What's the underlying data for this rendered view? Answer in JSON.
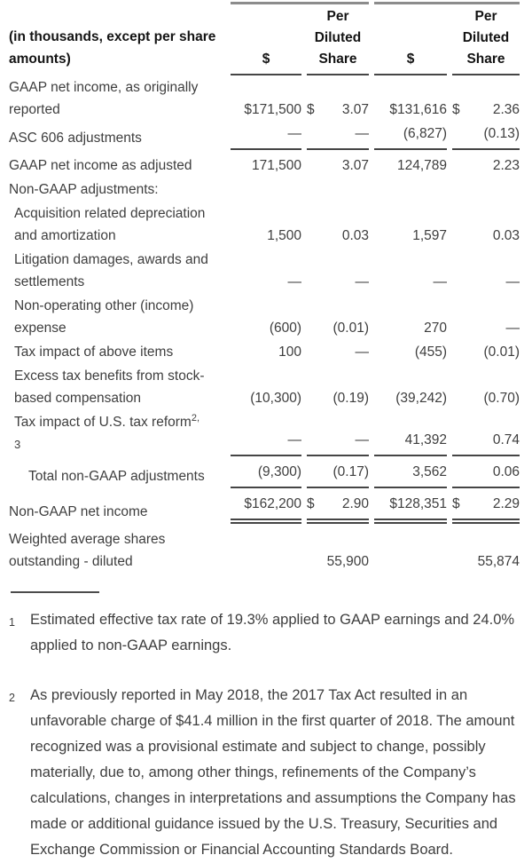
{
  "colors": {
    "text": "#3e3e3e",
    "heading": "#141414",
    "rule_thin": "#454545",
    "rule_thick": "#8c8c8c",
    "background": "#ffffff"
  },
  "table": {
    "corner_label": "(in thousands, except per share amounts)",
    "currency_symbol": "$",
    "column_headers": [
      "$",
      "Per Diluted Share",
      "$",
      "Per Diluted Share"
    ],
    "rows": [
      {
        "label": "GAAP net income, as originally reported",
        "indent": 0,
        "values": [
          "$171,500",
          "3.07",
          "$131,616",
          "2.36"
        ],
        "dollar_split": [
          false,
          true,
          false,
          true
        ],
        "rule": "none"
      },
      {
        "label": "ASC 606 adjustments",
        "indent": 0,
        "values": [
          "—",
          "—",
          "(6,827)",
          "(0.13)"
        ],
        "rule": "single"
      },
      {
        "label": "GAAP net income as adjusted",
        "indent": 0,
        "values": [
          "171,500",
          "3.07",
          "124,789",
          "2.23"
        ],
        "rule": "none"
      },
      {
        "label": "Non-GAAP adjustments:",
        "indent": 0,
        "values": [
          "",
          "",
          "",
          ""
        ],
        "rule": "none"
      },
      {
        "label": "Acquisition related depreciation and amortization",
        "indent": 1,
        "values": [
          "1,500",
          "0.03",
          "1,597",
          "0.03"
        ],
        "rule": "none"
      },
      {
        "label": "Litigation damages, awards and settlements",
        "indent": 1,
        "values": [
          "—",
          "—",
          "—",
          "—"
        ],
        "rule": "none"
      },
      {
        "label": "Non-operating other (income) expense",
        "indent": 1,
        "values": [
          "(600)",
          "(0.01)",
          "270",
          "—"
        ],
        "rule": "none"
      },
      {
        "label": "Tax impact of above items",
        "indent": 1,
        "values": [
          "100",
          "—",
          "(455)",
          "(0.01)"
        ],
        "rule": "none"
      },
      {
        "label": "Excess tax benefits from stock-based compensation",
        "indent": 1,
        "values": [
          "(10,300)",
          "(0.19)",
          "(39,242)",
          "(0.70)"
        ],
        "rule": "none"
      },
      {
        "label": "Tax impact of U.S. tax reform",
        "label_superscript": "2,",
        "label_superscript_line2": "3",
        "indent": 1,
        "values": [
          "—",
          "—",
          "41,392",
          "0.74"
        ],
        "rule": "single"
      },
      {
        "label": "Total non-GAAP adjustments",
        "indent": 2,
        "values": [
          "(9,300)",
          "(0.17)",
          "3,562",
          "0.06"
        ],
        "rule": "single"
      },
      {
        "label": "Non-GAAP net income",
        "indent": 0,
        "values": [
          "$162,200",
          "2.90",
          "$128,351",
          "2.29"
        ],
        "dollar_split": [
          false,
          true,
          false,
          true
        ],
        "rule": "double"
      },
      {
        "label": "Weighted average shares outstanding - diluted",
        "indent": 0,
        "values": [
          "",
          "55,900",
          "",
          "55,874"
        ],
        "rule": "none"
      }
    ]
  },
  "footnotes": [
    {
      "marker": "1",
      "text": "Estimated effective tax rate of 19.3% applied to GAAP earnings and 24.0% applied to non-GAAP earnings."
    },
    {
      "marker": "2",
      "text": "As previously reported in May 2018, the 2017 Tax Act resulted in an unfavorable charge of $41.4 million in the first quarter of 2018. The amount recognized was a provisional estimate and subject to change, possibly materially, due to, among other things, refinements of the Company’s calculations, changes in interpretations and assumptions the Company has made or additional guidance issued by the U.S. Treasury, Securities and Exchange Commission or Financial Accounting Standards Board."
    }
  ]
}
